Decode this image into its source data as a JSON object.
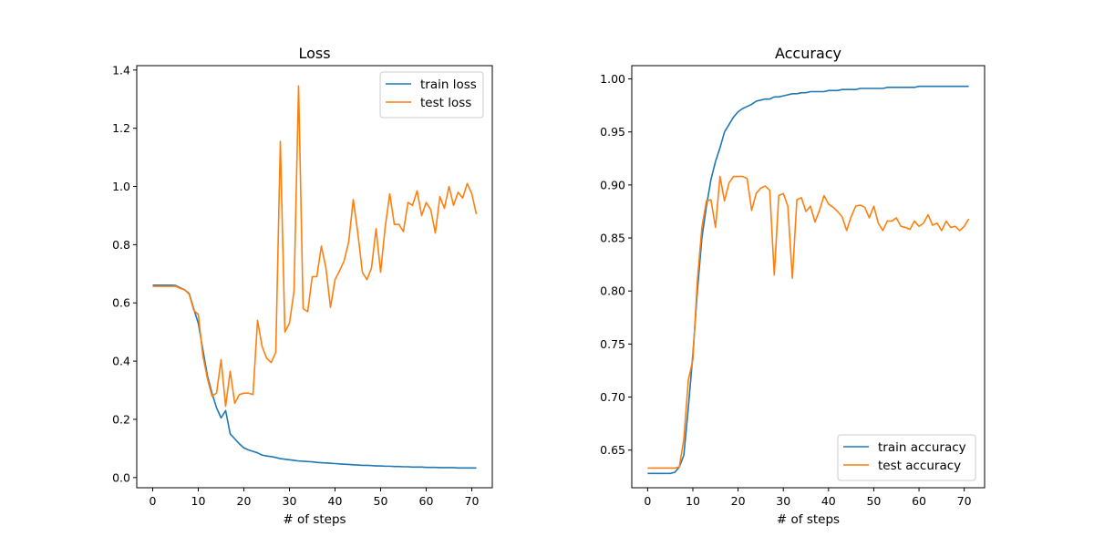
{
  "chart_data": [
    {
      "type": "line",
      "title": "Loss",
      "xlabel": "# of steps",
      "ylabel": "",
      "xlim": [
        -3.5,
        74.5
      ],
      "ylim": [
        -0.035,
        1.415
      ],
      "xticks": [
        0,
        10,
        20,
        30,
        40,
        50,
        60,
        70
      ],
      "yticks": [
        0.0,
        0.2,
        0.4,
        0.6,
        0.8,
        1.0,
        1.2,
        1.4
      ],
      "ytick_labels": [
        "0.0",
        "0.2",
        "0.4",
        "0.6",
        "0.8",
        "1.0",
        "1.2",
        "1.4"
      ],
      "grid": false,
      "legend": "upper right",
      "x": [
        0,
        1,
        2,
        3,
        4,
        5,
        6,
        7,
        8,
        9,
        10,
        11,
        12,
        13,
        14,
        15,
        16,
        17,
        18,
        19,
        20,
        21,
        22,
        23,
        24,
        25,
        26,
        27,
        28,
        29,
        30,
        31,
        32,
        33,
        34,
        35,
        36,
        37,
        38,
        39,
        40,
        41,
        42,
        43,
        44,
        45,
        46,
        47,
        48,
        49,
        50,
        51,
        52,
        53,
        54,
        55,
        56,
        57,
        58,
        59,
        60,
        61,
        62,
        63,
        64,
        65,
        66,
        67,
        68,
        69,
        70,
        71
      ],
      "series": [
        {
          "name": "train loss",
          "color": "#1f77b4",
          "values": [
            0.661,
            0.661,
            0.661,
            0.661,
            0.661,
            0.66,
            0.652,
            0.645,
            0.632,
            0.58,
            0.53,
            0.44,
            0.35,
            0.29,
            0.24,
            0.205,
            0.23,
            0.15,
            0.133,
            0.116,
            0.102,
            0.095,
            0.09,
            0.085,
            0.077,
            0.074,
            0.072,
            0.069,
            0.065,
            0.063,
            0.061,
            0.059,
            0.057,
            0.056,
            0.055,
            0.054,
            0.052,
            0.051,
            0.05,
            0.049,
            0.048,
            0.047,
            0.046,
            0.045,
            0.044,
            0.043,
            0.042,
            0.042,
            0.041,
            0.04,
            0.04,
            0.039,
            0.039,
            0.038,
            0.038,
            0.037,
            0.037,
            0.036,
            0.036,
            0.036,
            0.035,
            0.035,
            0.035,
            0.034,
            0.034,
            0.034,
            0.034,
            0.033,
            0.033,
            0.033,
            0.033,
            0.033
          ]
        },
        {
          "name": "test loss",
          "color": "#ff7f0e",
          "values": [
            0.657,
            0.657,
            0.657,
            0.657,
            0.657,
            0.657,
            0.65,
            0.645,
            0.63,
            0.575,
            0.56,
            0.42,
            0.34,
            0.28,
            0.29,
            0.405,
            0.245,
            0.365,
            0.255,
            0.285,
            0.29,
            0.29,
            0.285,
            0.54,
            0.45,
            0.41,
            0.395,
            0.43,
            1.155,
            0.5,
            0.53,
            0.64,
            1.345,
            0.58,
            0.57,
            0.69,
            0.69,
            0.795,
            0.72,
            0.585,
            0.68,
            0.71,
            0.745,
            0.81,
            0.955,
            0.84,
            0.705,
            0.68,
            0.72,
            0.855,
            0.705,
            0.86,
            0.975,
            0.87,
            0.87,
            0.845,
            0.945,
            0.935,
            0.985,
            0.9,
            0.945,
            0.92,
            0.84,
            0.965,
            0.925,
            1.0,
            0.935,
            0.98,
            0.96,
            1.01,
            0.975,
            0.905
          ]
        }
      ]
    },
    {
      "type": "line",
      "title": "Accuracy",
      "xlabel": "# of steps",
      "ylabel": "",
      "xlim": [
        -3.5,
        74.5
      ],
      "ylim": [
        0.6145,
        1.0125
      ],
      "xticks": [
        0,
        10,
        20,
        30,
        40,
        50,
        60,
        70
      ],
      "yticks": [
        0.65,
        0.7,
        0.75,
        0.8,
        0.85,
        0.9,
        0.95,
        1.0
      ],
      "ytick_labels": [
        "0.65",
        "0.70",
        "0.75",
        "0.80",
        "0.85",
        "0.90",
        "0.95",
        "1.00"
      ],
      "grid": false,
      "legend": "lower right",
      "x": [
        0,
        1,
        2,
        3,
        4,
        5,
        6,
        7,
        8,
        9,
        10,
        11,
        12,
        13,
        14,
        15,
        16,
        17,
        18,
        19,
        20,
        21,
        22,
        23,
        24,
        25,
        26,
        27,
        28,
        29,
        30,
        31,
        32,
        33,
        34,
        35,
        36,
        37,
        38,
        39,
        40,
        41,
        42,
        43,
        44,
        45,
        46,
        47,
        48,
        49,
        50,
        51,
        52,
        53,
        54,
        55,
        56,
        57,
        58,
        59,
        60,
        61,
        62,
        63,
        64,
        65,
        66,
        67,
        68,
        69,
        70,
        71
      ],
      "series": [
        {
          "name": "train accuracy",
          "color": "#1f77b4",
          "values": [
            0.628,
            0.628,
            0.628,
            0.628,
            0.628,
            0.628,
            0.629,
            0.634,
            0.645,
            0.69,
            0.74,
            0.8,
            0.85,
            0.88,
            0.905,
            0.922,
            0.935,
            0.95,
            0.957,
            0.964,
            0.969,
            0.972,
            0.974,
            0.976,
            0.979,
            0.98,
            0.981,
            0.981,
            0.983,
            0.983,
            0.984,
            0.985,
            0.986,
            0.986,
            0.987,
            0.987,
            0.988,
            0.988,
            0.988,
            0.988,
            0.989,
            0.989,
            0.989,
            0.99,
            0.99,
            0.99,
            0.99,
            0.991,
            0.991,
            0.991,
            0.991,
            0.991,
            0.991,
            0.992,
            0.992,
            0.992,
            0.992,
            0.992,
            0.992,
            0.992,
            0.993,
            0.993,
            0.993,
            0.993,
            0.993,
            0.993,
            0.993,
            0.993,
            0.993,
            0.993,
            0.993,
            0.993
          ]
        },
        {
          "name": "test accuracy",
          "color": "#ff7f0e",
          "values": [
            0.633,
            0.633,
            0.633,
            0.633,
            0.633,
            0.633,
            0.633,
            0.634,
            0.66,
            0.716,
            0.735,
            0.81,
            0.86,
            0.885,
            0.886,
            0.86,
            0.908,
            0.885,
            0.902,
            0.908,
            0.908,
            0.908,
            0.906,
            0.876,
            0.892,
            0.897,
            0.899,
            0.895,
            0.815,
            0.89,
            0.892,
            0.88,
            0.812,
            0.886,
            0.888,
            0.875,
            0.88,
            0.865,
            0.876,
            0.89,
            0.882,
            0.879,
            0.875,
            0.87,
            0.857,
            0.87,
            0.88,
            0.881,
            0.879,
            0.869,
            0.88,
            0.864,
            0.857,
            0.866,
            0.866,
            0.869,
            0.861,
            0.86,
            0.858,
            0.866,
            0.861,
            0.864,
            0.872,
            0.862,
            0.864,
            0.857,
            0.866,
            0.86,
            0.861,
            0.857,
            0.861,
            0.868
          ]
        }
      ]
    }
  ]
}
